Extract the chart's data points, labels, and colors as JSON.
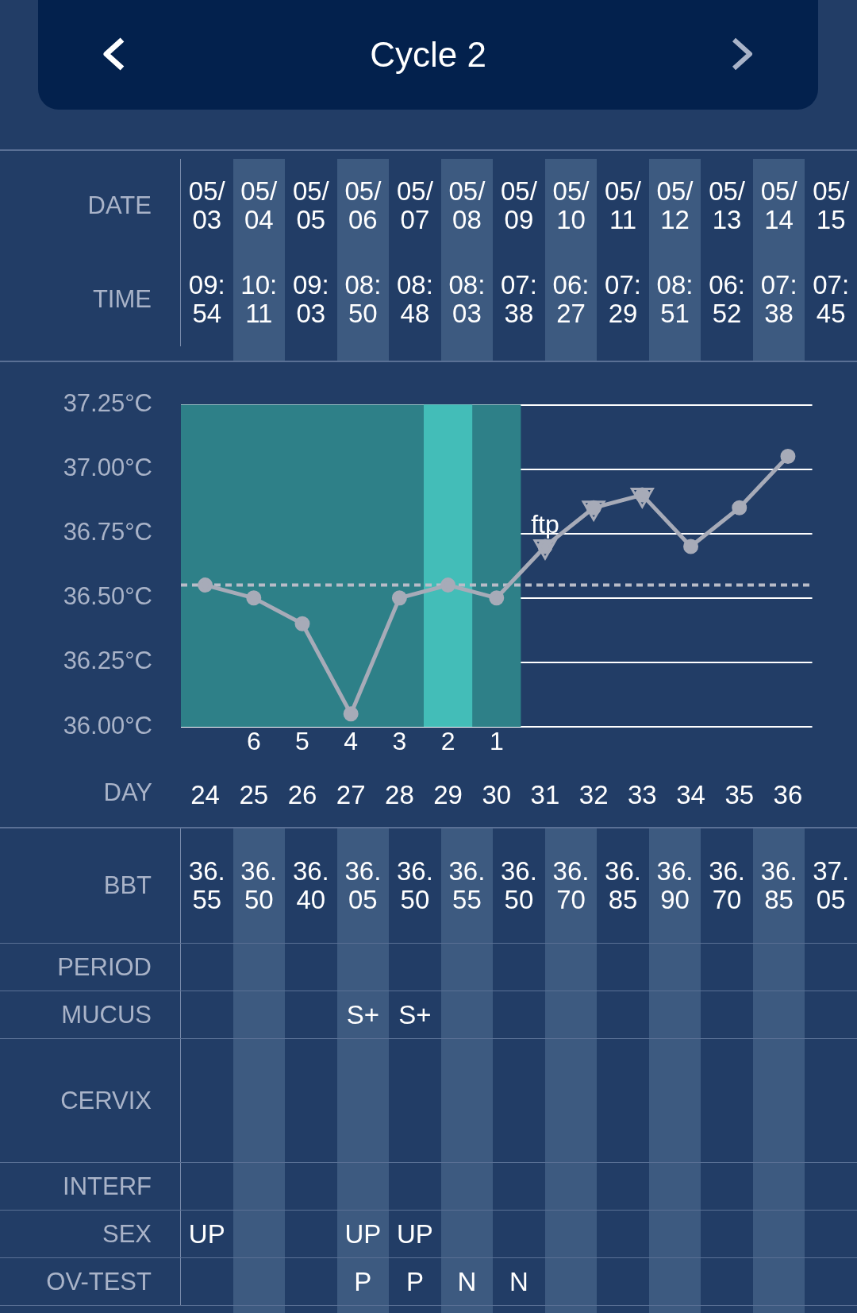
{
  "chart_data": {
    "type": "line",
    "title": "Cycle 2",
    "xlabel": "DAY",
    "categories": [
      "24",
      "25",
      "26",
      "27",
      "28",
      "29",
      "30",
      "31",
      "32",
      "33",
      "34",
      "35",
      "36"
    ],
    "series": [
      {
        "color": "#a7abb8",
        "values": [
          36.55,
          36.5,
          36.4,
          36.05,
          36.5,
          36.55,
          36.5,
          36.7,
          36.85,
          36.9,
          36.7,
          36.85,
          37.05
        ]
      },
      {
        "type": "scatter",
        "marker": "triangle",
        "color": "#a7abb8",
        "values": [
          null,
          null,
          null,
          null,
          null,
          null,
          null,
          36.7,
          36.85,
          36.9,
          null,
          null,
          null
        ]
      }
    ],
    "ylim": [
      36.0,
      37.25
    ],
    "yticks": [
      {
        "value": 36.0,
        "label": "36.00°C"
      },
      {
        "value": 36.25,
        "label": "36.25°C"
      },
      {
        "value": 36.5,
        "label": "36.50°C"
      },
      {
        "value": 36.75,
        "label": "36.75°C"
      },
      {
        "value": 37.0,
        "label": "37.00°C"
      },
      {
        "value": 37.25,
        "label": "37.25°C"
      }
    ],
    "grid": "y",
    "legend": false,
    "marker": "circle",
    "bands": [
      {
        "axis": "x",
        "from": "24",
        "to": "30",
        "color": "#2e8088"
      },
      {
        "axis": "x",
        "from": "29",
        "to": "29",
        "color": "#43bdb8"
      }
    ],
    "ref_lines": [
      {
        "axis": "y",
        "value": 36.55,
        "color": "#b8bcc8",
        "line_style": "dotted"
      }
    ],
    "annotations": [
      "DATE",
      "05/03",
      "05/04",
      "05/05",
      "05/06",
      "05/07",
      "05/08",
      "05/09",
      "05/10",
      "05/11",
      "05/12",
      "05/13",
      "05/14",
      "05/15",
      "TIME",
      "09:54",
      "10:11",
      "09:03",
      "08:50",
      "08:48",
      "08:03",
      "07:38",
      "06:27",
      "07:29",
      "08:51",
      "06:52",
      "07:38",
      "07:45",
      "BBT",
      "36.55",
      "36.50",
      "36.40",
      "36.05",
      "36.50",
      "36.55",
      "36.50",
      "36.70",
      "36.85",
      "36.90",
      "36.70",
      "36.85",
      "37.05",
      "PERIOD",
      null,
      null,
      null,
      null,
      null,
      null,
      null,
      null,
      null,
      null,
      null,
      null,
      null,
      "MUCUS",
      null,
      null,
      null,
      "S+",
      "S+",
      null,
      null,
      null,
      null,
      null,
      null,
      null,
      null,
      "CERVIX",
      null,
      null,
      null,
      null,
      null,
      null,
      null,
      null,
      null,
      null,
      null,
      null,
      null,
      "INTERF",
      null,
      null,
      null,
      null,
      null,
      null,
      null,
      null,
      null,
      null,
      null,
      null,
      null,
      "SEX",
      "UP",
      null,
      null,
      "UP",
      "UP",
      null,
      null,
      null,
      null,
      null,
      null,
      null,
      null,
      "OV-TEST",
      null,
      null,
      null,
      "P",
      "P",
      "N",
      "N",
      null,
      null,
      null,
      null,
      null,
      null,
      {
        "text": "6",
        "x": "25",
        "y": 36.0
      },
      {
        "text": "5",
        "x": "26",
        "y": 36.0
      },
      {
        "text": "4",
        "x": "27",
        "y": 36.0
      },
      {
        "text": "3",
        "x": "28",
        "y": 36.0
      },
      {
        "text": "2",
        "x": "29",
        "y": 36.0
      },
      {
        "text": "1",
        "x": "30",
        "y": 36.0
      },
      {
        "text": "ftp",
        "x": "31",
        "y": 36.7
      }
    ]
  }
}
